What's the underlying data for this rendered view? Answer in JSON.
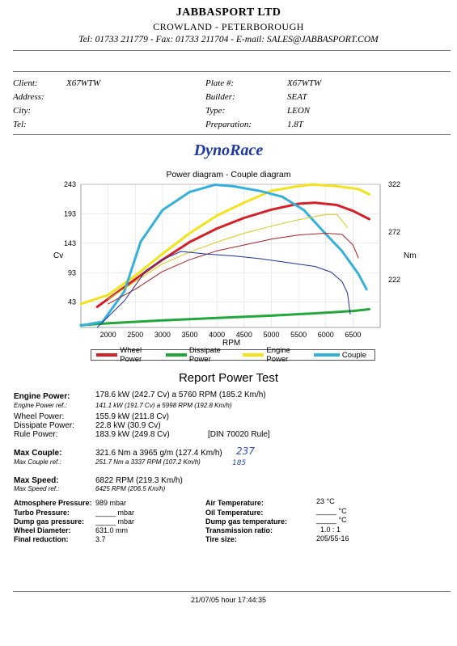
{
  "header": {
    "company": "JABBASPORT LTD",
    "location": "CROWLAND - PETERBOROUGH",
    "contact": "Tel: 01733 211779 - Fax: 01733 211704 - E-mail: SALES@JABBASPORT.COM"
  },
  "vehicle": {
    "client_label": "Client:",
    "client": "X67WTW",
    "address_label": "Address:",
    "city_label": "City:",
    "tel_label": "Tel:",
    "plate_label": "Plate #:",
    "plate": "X67WTW",
    "builder_label": "Builder:",
    "builder": "SEAT",
    "type_label": "Type:",
    "type": "LEON",
    "prep_label": "Preparation:",
    "prep": "1.8T"
  },
  "brand": "DynoRace",
  "chart_data": {
    "type": "line",
    "title": "Power diagram - Couple diagram",
    "xlabel": "RPM",
    "ylabel_left": "Cv",
    "ylabel_right": "Nm",
    "xlim": [
      1500,
      7000
    ],
    "ylim_left": [
      0,
      243
    ],
    "ylim_right": [
      172,
      322
    ],
    "x_ticks": [
      "2000",
      "2500",
      "3000",
      "3500",
      "4000",
      "4500",
      "5000",
      "5500",
      "6000",
      "6500"
    ],
    "y_ticks_left": [
      "43",
      "93",
      "143",
      "193",
      "243"
    ],
    "y_ticks_right": [
      "222",
      "272",
      "322"
    ],
    "series": [
      {
        "name": "Wheel Power",
        "color": "#d42027",
        "axis": "left",
        "width": 3,
        "points": [
          [
            1800,
            35
          ],
          [
            2500,
            82
          ],
          [
            3000,
            115
          ],
          [
            3500,
            145
          ],
          [
            4000,
            168
          ],
          [
            4500,
            186
          ],
          [
            5000,
            200
          ],
          [
            5500,
            210
          ],
          [
            5800,
            211.8
          ],
          [
            6200,
            208
          ],
          [
            6500,
            198
          ],
          [
            6800,
            184
          ]
        ]
      },
      {
        "name": "Dissipate Power",
        "color": "#22a83a",
        "axis": "left",
        "width": 3,
        "points": [
          [
            1500,
            4
          ],
          [
            2000,
            7
          ],
          [
            3000,
            12
          ],
          [
            4000,
            16
          ],
          [
            5000,
            20
          ],
          [
            6000,
            25
          ],
          [
            6500,
            28
          ],
          [
            6800,
            30.9
          ]
        ]
      },
      {
        "name": "Engine Power",
        "color": "#f2e31f",
        "axis": "left",
        "width": 3,
        "points": [
          [
            1500,
            40
          ],
          [
            2000,
            55
          ],
          [
            2500,
            88
          ],
          [
            3000,
            125
          ],
          [
            3500,
            160
          ],
          [
            4000,
            190
          ],
          [
            4500,
            212
          ],
          [
            5000,
            232
          ],
          [
            5500,
            240
          ],
          [
            5760,
            242.7
          ],
          [
            6200,
            240
          ],
          [
            6600,
            235
          ],
          [
            6800,
            226
          ]
        ]
      },
      {
        "name": "Couple",
        "color": "#35b0d8",
        "axis": "right",
        "width": 3,
        "points": [
          [
            1500,
            174
          ],
          [
            1900,
            178
          ],
          [
            2300,
            210
          ],
          [
            2600,
            262
          ],
          [
            3000,
            295
          ],
          [
            3500,
            314
          ],
          [
            3965,
            321.6
          ],
          [
            4300,
            320
          ],
          [
            4800,
            315
          ],
          [
            5200,
            309
          ],
          [
            5600,
            295
          ],
          [
            6000,
            270
          ],
          [
            6300,
            252
          ],
          [
            6600,
            228
          ],
          [
            6750,
            212
          ]
        ]
      },
      {
        "name": "Wheel Power ref.",
        "color": "#a3222a",
        "axis": "left",
        "width": 1,
        "points": [
          [
            2000,
            40
          ],
          [
            2500,
            65
          ],
          [
            3000,
            95
          ],
          [
            3500,
            115
          ],
          [
            4000,
            130
          ],
          [
            4500,
            140
          ],
          [
            5000,
            150
          ],
          [
            5500,
            157
          ],
          [
            5998,
            160
          ],
          [
            6300,
            158
          ],
          [
            6500,
            140
          ],
          [
            6600,
            118
          ]
        ]
      },
      {
        "name": "Engine Power ref.",
        "color": "#d3c814",
        "axis": "left",
        "width": 1,
        "points": [
          [
            2000,
            48
          ],
          [
            2500,
            78
          ],
          [
            3000,
            108
          ],
          [
            3500,
            128
          ],
          [
            4000,
            145
          ],
          [
            4500,
            160
          ],
          [
            5000,
            172
          ],
          [
            5500,
            183
          ],
          [
            5998,
            191.7
          ],
          [
            6200,
            192
          ],
          [
            6400,
            170
          ]
        ]
      },
      {
        "name": "Couple ref.",
        "color": "#1d2f9e",
        "axis": "right",
        "width": 1,
        "points": [
          [
            1800,
            172
          ],
          [
            2300,
            200
          ],
          [
            2700,
            232
          ],
          [
            3000,
            243
          ],
          [
            3337,
            251.7
          ],
          [
            3800,
            249
          ],
          [
            4300,
            247
          ],
          [
            4800,
            244
          ],
          [
            5300,
            240
          ],
          [
            5800,
            236
          ],
          [
            6100,
            230
          ],
          [
            6300,
            220
          ],
          [
            6400,
            208
          ],
          [
            6450,
            186
          ]
        ]
      }
    ],
    "legend": [
      "Wheel Power",
      "Dissipate Power",
      "Engine Power",
      "Couple"
    ]
  },
  "report": {
    "title": "Report Power Test",
    "engine_power_label": "Engine Power:",
    "engine_power": "178.6 kW (242.7 Cv) a 5760 RPM (185.2 Km/h)",
    "engine_power_ref_label": "Engine Power ref.:",
    "engine_power_ref": "141.1 kW (191.7 Cv) a 5998 RPM (192.8 Km/h)",
    "wheel_power_label": "Wheel Power:",
    "wheel_power": "155.9 kW (211.8 Cv)",
    "dissipate_power_label": "Dissipate Power:",
    "dissipate_power": "22.8 kW (30.9 Cv)",
    "rule_power_label": "Rule Power:",
    "rule_power": "183.9 kW (249.8 Cv)",
    "rule_note": "[DIN 70020 Rule]",
    "max_couple_label": "Max Couple:",
    "max_couple": "321.6 Nm a 3965 g/m (127.4 Km/h)",
    "max_couple_ref_label": "Max Couple ref.:",
    "max_couple_ref": "251.7 Nm a 3337 RPM (107.2 Km/h)",
    "handwritten_1": "237",
    "handwritten_2": "185",
    "max_speed_label": "Max Speed:",
    "max_speed": "6822 RPM (219.3 Km/h)",
    "max_speed_ref_label": "Max Speed ref.:",
    "max_speed_ref": "6425 RPM (206.5 Km/h)"
  },
  "conditions": {
    "atm_label": "Atmosphere Pressure:",
    "atm": "989 mbar",
    "turbo_label": "Turbo Pressure:",
    "turbo": "_____ mbar",
    "dump_label": "Dump gas pressure:",
    "dump": "_____ mbar",
    "wheel_d_label": "Wheel Diameter:",
    "wheel_d": "631.0 mm",
    "final_label": "Final reduction:",
    "final": "3.7",
    "air_label": "Air Temperature:",
    "air": "23 °C",
    "oil_label": "Oil Temperature:",
    "oil": "_____ °C",
    "dump_t_label": "Dump gas temperature:",
    "dump_t": "_____ °C",
    "trans_label": "Transmission ratio:",
    "trans": "1.0 : 1",
    "tire_label": "Tire size:",
    "tire": "205/55-16"
  },
  "footer": {
    "timestamp": "21/07/05 hour 17:44:35"
  }
}
